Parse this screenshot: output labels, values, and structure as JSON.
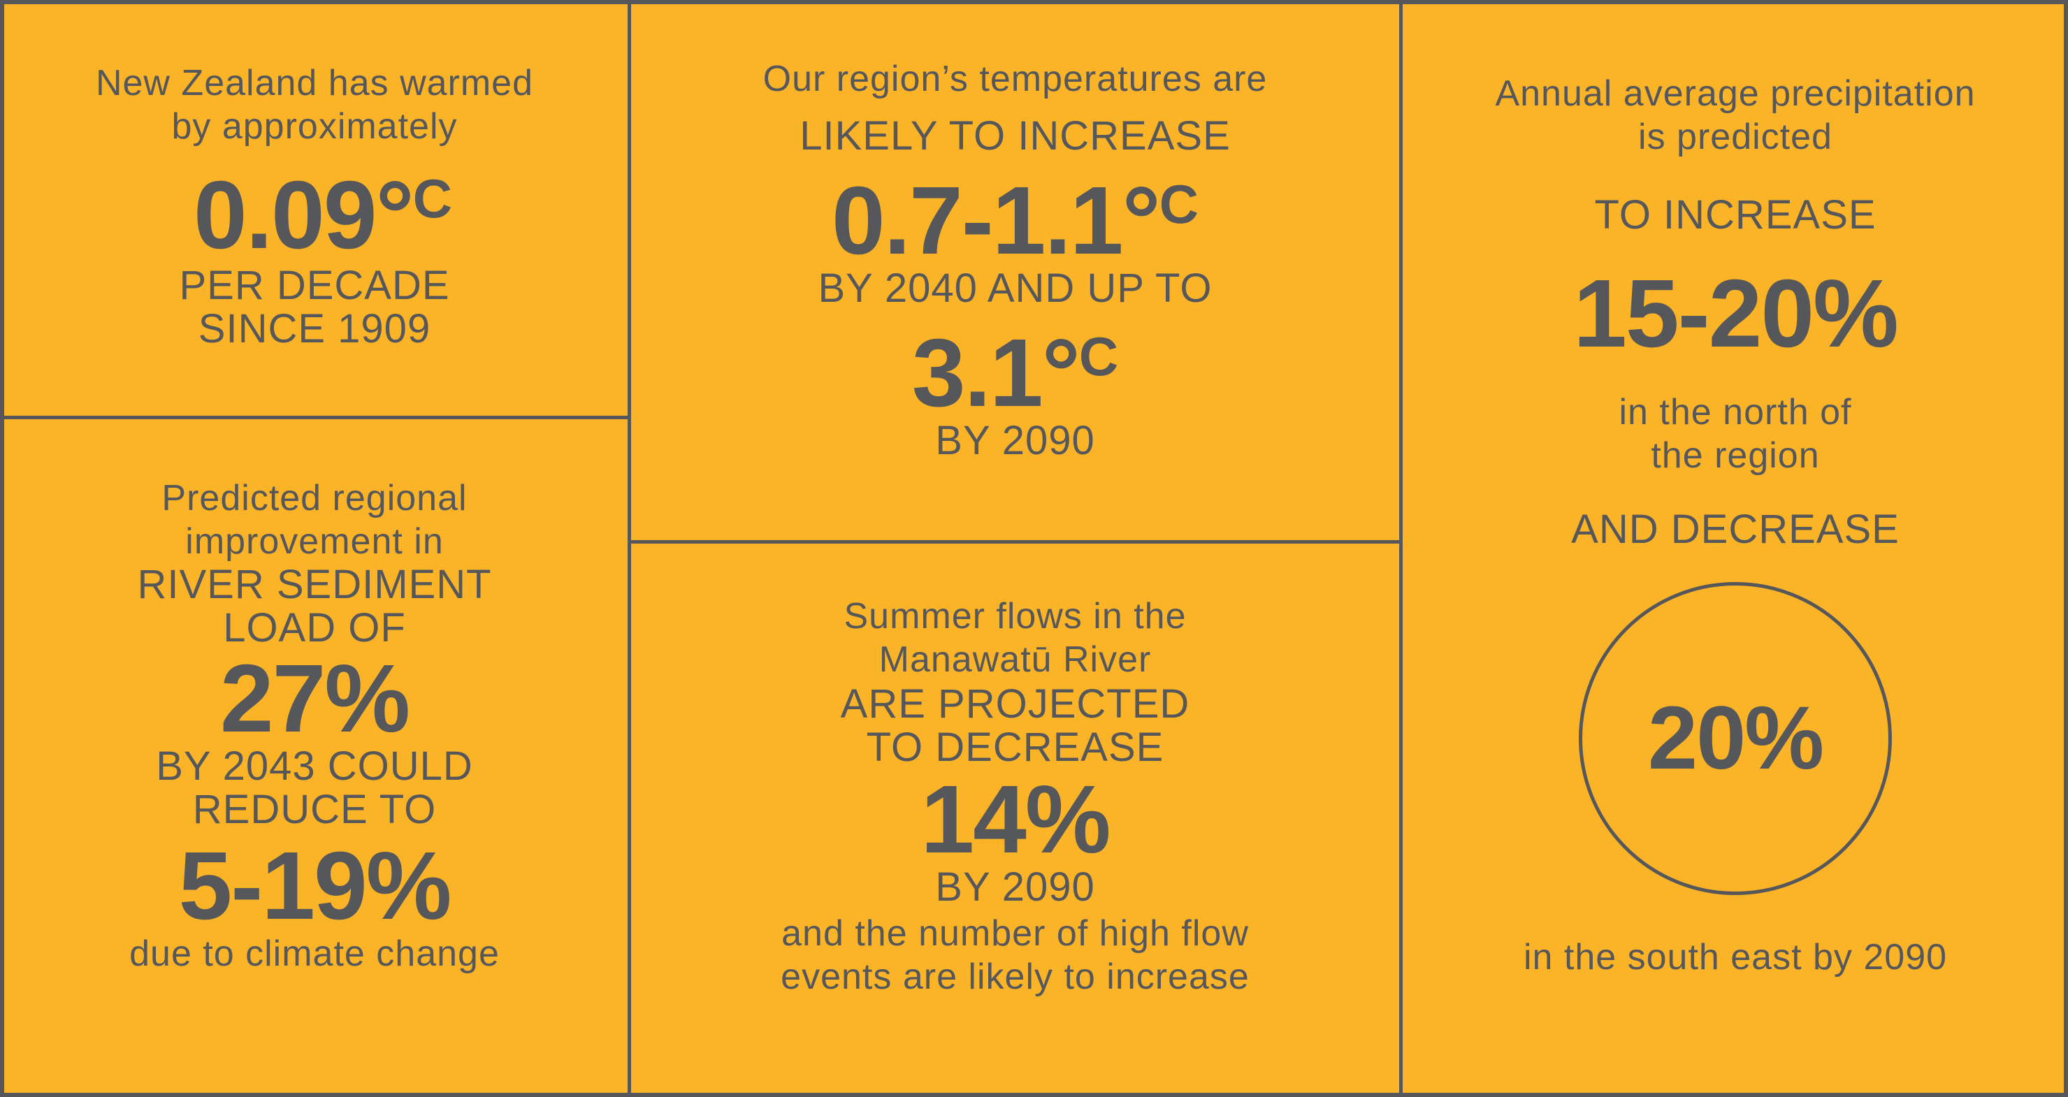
{
  "panel1": {
    "intro": [
      "New Zealand has warmed",
      "by approximately"
    ],
    "value": "0.09°",
    "unit": "C",
    "detail": [
      "PER DECADE",
      "SINCE 1909"
    ]
  },
  "panel2": {
    "intro": "Our region’s temperatures are",
    "headline": "LIKELY TO INCREASE",
    "value1": "0.7-1.1°",
    "unit1": "C",
    "mid": "BY 2040 AND UP TO",
    "value2": "3.1°",
    "unit2": "C",
    "end": "BY 2090"
  },
  "panel3": {
    "intro": [
      "Annual average precipitation",
      "is predicted"
    ],
    "headline": "TO INCREASE",
    "value": "15-20%",
    "north": [
      "in the north of",
      "the region"
    ],
    "headline2": "AND DECREASE",
    "circle_value": "20%",
    "south": "in the south east by 2090"
  },
  "panel4": {
    "intro": [
      "Predicted regional",
      "improvement in"
    ],
    "headline": [
      "RIVER SEDIMENT",
      "LOAD OF"
    ],
    "value": "27%",
    "mid": [
      "BY 2043 COULD",
      "REDUCE TO"
    ],
    "value2": "5-19%",
    "end": "due to climate change"
  },
  "panel5": {
    "intro": [
      "Summer flows in the",
      "Manawatū River"
    ],
    "headline": [
      "ARE PROJECTED",
      "TO DECREASE"
    ],
    "value": "14%",
    "end": "BY 2090",
    "note": [
      "and the number of high flow",
      "events are likely to increase"
    ]
  }
}
